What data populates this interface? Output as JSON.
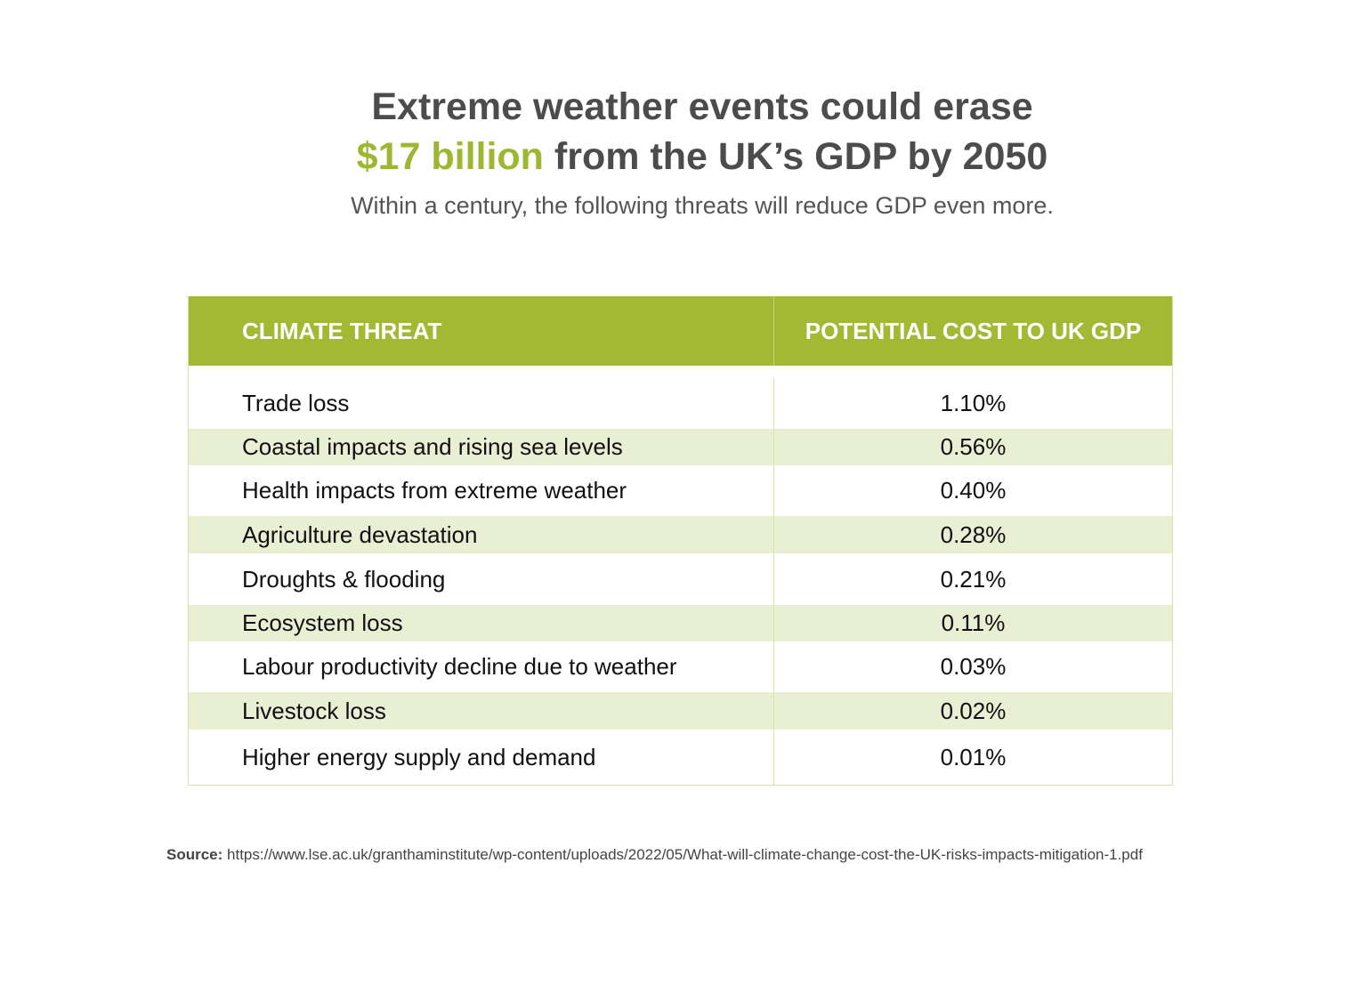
{
  "title": {
    "line1": "Extreme weather events could erase",
    "accent": "$17 billion",
    "line2_rest": " from the UK’s GDP by 2050"
  },
  "subtitle": "Within a century, the following threats will reduce GDP even more.",
  "colors": {
    "accent": "#9db732",
    "header_bg": "#a3b833",
    "stripe": "#e9efd3",
    "title": "#4b4c4e"
  },
  "chart_data": {
    "type": "table",
    "columns": [
      "CLIMATE THREAT",
      "POTENTIAL COST TO UK GDP"
    ],
    "rows": [
      [
        "Trade loss",
        "1.10%"
      ],
      [
        "Coastal impacts and rising sea levels",
        "0.56%"
      ],
      [
        "Health impacts from extreme weather",
        "0.40%"
      ],
      [
        "Agriculture devastation",
        "0.28%"
      ],
      [
        "Droughts & flooding",
        "0.21%"
      ],
      [
        "Ecosystem loss",
        "0.11%"
      ],
      [
        "Labour productivity decline due to weather",
        "0.03%"
      ],
      [
        "Livestock loss",
        "0.02%"
      ],
      [
        "Higher energy supply and demand",
        "0.01%"
      ]
    ]
  },
  "source": {
    "label": "Source:",
    "text": " https://www.lse.ac.uk/granthaminstitute/wp-content/uploads/2022/05/What-will-climate-change-cost-the-UK-risks-impacts-mitigation-1.pdf"
  }
}
